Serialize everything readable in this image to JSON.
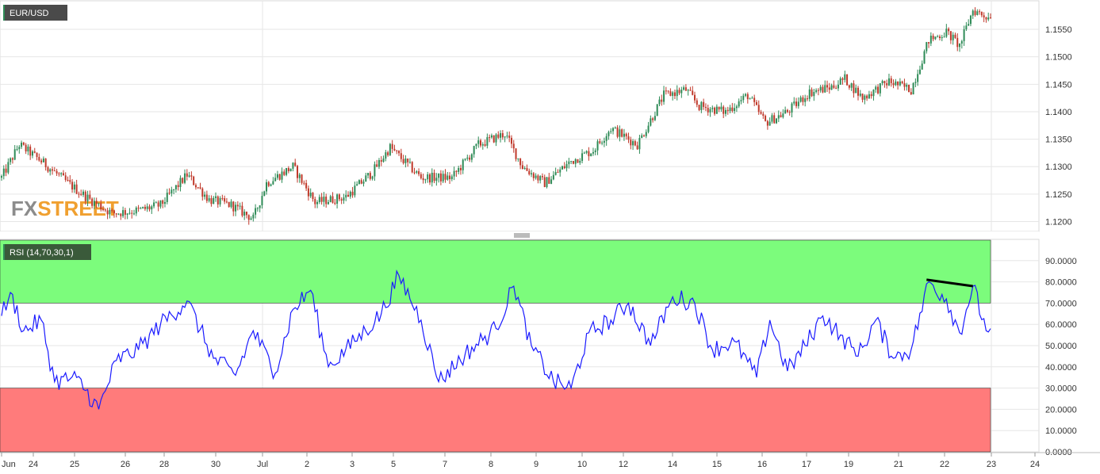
{
  "colors": {
    "up": "#2e8b57",
    "down": "#c0392b",
    "rsi_line": "#1a1aff",
    "overbought_zone": "#7cfc7c",
    "oversold_zone": "#ff7b7b",
    "divergence": "#000000",
    "grid": "#e6e6e6",
    "label_bg": "#4a4a4a",
    "label_bg_rsi": "#3a5a3a"
  },
  "logo": {
    "text": "FXSTREET"
  },
  "chart_data": [
    {
      "type": "candlestick",
      "title": "EUR/USD",
      "yticks": [
        "1.1550",
        "1.1500",
        "1.1450",
        "1.1400",
        "1.1350",
        "1.1300",
        "1.1250",
        "1.1200"
      ],
      "ylim": [
        1.1182,
        1.1602
      ],
      "grid": true,
      "x_labels": [
        "Jun",
        "24",
        "25",
        "26",
        "28",
        "30",
        "Jul",
        "2",
        "3",
        "5",
        "7",
        "8",
        "9",
        "10",
        "12",
        "14",
        "15",
        "16",
        "17",
        "19",
        "21",
        "22",
        "23",
        "24"
      ],
      "close_anchors": [
        {
          "i": 0,
          "c": 1.128
        },
        {
          "i": 8,
          "c": 1.134
        },
        {
          "i": 18,
          "c": 1.131
        },
        {
          "i": 30,
          "c": 1.127
        },
        {
          "i": 40,
          "c": 1.124
        },
        {
          "i": 50,
          "c": 1.1215
        },
        {
          "i": 62,
          "c": 1.122
        },
        {
          "i": 72,
          "c": 1.123
        },
        {
          "i": 84,
          "c": 1.1285
        },
        {
          "i": 94,
          "c": 1.124
        },
        {
          "i": 104,
          "c": 1.123
        },
        {
          "i": 114,
          "c": 1.1205
        },
        {
          "i": 120,
          "c": 1.127
        },
        {
          "i": 132,
          "c": 1.13
        },
        {
          "i": 142,
          "c": 1.1235
        },
        {
          "i": 156,
          "c": 1.1245
        },
        {
          "i": 168,
          "c": 1.129
        },
        {
          "i": 176,
          "c": 1.1335
        },
        {
          "i": 190,
          "c": 1.128
        },
        {
          "i": 204,
          "c": 1.128
        },
        {
          "i": 216,
          "c": 1.134
        },
        {
          "i": 228,
          "c": 1.136
        },
        {
          "i": 236,
          "c": 1.13
        },
        {
          "i": 246,
          "c": 1.127
        },
        {
          "i": 258,
          "c": 1.131
        },
        {
          "i": 268,
          "c": 1.133
        },
        {
          "i": 276,
          "c": 1.137
        },
        {
          "i": 288,
          "c": 1.134
        },
        {
          "i": 300,
          "c": 1.143
        },
        {
          "i": 310,
          "c": 1.144
        },
        {
          "i": 316,
          "c": 1.141
        },
        {
          "i": 328,
          "c": 1.14
        },
        {
          "i": 338,
          "c": 1.143
        },
        {
          "i": 346,
          "c": 1.138
        },
        {
          "i": 356,
          "c": 1.14
        },
        {
          "i": 366,
          "c": 1.1435
        },
        {
          "i": 376,
          "c": 1.1445
        },
        {
          "i": 382,
          "c": 1.146
        },
        {
          "i": 390,
          "c": 1.1425
        },
        {
          "i": 402,
          "c": 1.1455
        },
        {
          "i": 412,
          "c": 1.144
        },
        {
          "i": 420,
          "c": 1.153
        },
        {
          "i": 428,
          "c": 1.1545
        },
        {
          "i": 434,
          "c": 1.152
        },
        {
          "i": 440,
          "c": 1.1585
        },
        {
          "i": 448,
          "c": 1.157
        }
      ],
      "n_candles": 449
    },
    {
      "type": "line",
      "title": "RSI (14,70,30,1)",
      "yticks": [
        "90.0000",
        "80.0000",
        "70.0000",
        "60.0000",
        "50.0000",
        "40.0000",
        "30.0000",
        "20.0000",
        "10.0000",
        "0.0000"
      ],
      "ylim": [
        0,
        100
      ],
      "overbought": 70,
      "oversold": 30,
      "divergence_line": [
        {
          "i": 419,
          "y": 81
        },
        {
          "i": 440,
          "y": 78
        }
      ],
      "rsi_anchors": [
        {
          "i": 0,
          "y": 64
        },
        {
          "i": 4,
          "y": 75
        },
        {
          "i": 10,
          "y": 57
        },
        {
          "i": 18,
          "y": 62
        },
        {
          "i": 24,
          "y": 33
        },
        {
          "i": 34,
          "y": 35
        },
        {
          "i": 44,
          "y": 20
        },
        {
          "i": 52,
          "y": 43
        },
        {
          "i": 62,
          "y": 48
        },
        {
          "i": 72,
          "y": 60
        },
        {
          "i": 84,
          "y": 71
        },
        {
          "i": 96,
          "y": 44
        },
        {
          "i": 106,
          "y": 36
        },
        {
          "i": 114,
          "y": 57
        },
        {
          "i": 124,
          "y": 37
        },
        {
          "i": 132,
          "y": 67
        },
        {
          "i": 140,
          "y": 76
        },
        {
          "i": 148,
          "y": 40
        },
        {
          "i": 160,
          "y": 52
        },
        {
          "i": 172,
          "y": 65
        },
        {
          "i": 180,
          "y": 83
        },
        {
          "i": 190,
          "y": 62
        },
        {
          "i": 198,
          "y": 33
        },
        {
          "i": 210,
          "y": 46
        },
        {
          "i": 224,
          "y": 58
        },
        {
          "i": 232,
          "y": 78
        },
        {
          "i": 240,
          "y": 50
        },
        {
          "i": 250,
          "y": 33
        },
        {
          "i": 258,
          "y": 30
        },
        {
          "i": 266,
          "y": 56
        },
        {
          "i": 276,
          "y": 62
        },
        {
          "i": 284,
          "y": 70
        },
        {
          "i": 294,
          "y": 50
        },
        {
          "i": 304,
          "y": 73
        },
        {
          "i": 314,
          "y": 70
        },
        {
          "i": 322,
          "y": 48
        },
        {
          "i": 332,
          "y": 52
        },
        {
          "i": 342,
          "y": 35
        },
        {
          "i": 348,
          "y": 62
        },
        {
          "i": 356,
          "y": 38
        },
        {
          "i": 364,
          "y": 50
        },
        {
          "i": 372,
          "y": 64
        },
        {
          "i": 380,
          "y": 55
        },
        {
          "i": 388,
          "y": 45
        },
        {
          "i": 396,
          "y": 62
        },
        {
          "i": 404,
          "y": 44
        },
        {
          "i": 412,
          "y": 48
        },
        {
          "i": 420,
          "y": 80
        },
        {
          "i": 428,
          "y": 72
        },
        {
          "i": 434,
          "y": 56
        },
        {
          "i": 440,
          "y": 78
        },
        {
          "i": 446,
          "y": 57
        },
        {
          "i": 448,
          "y": 58
        }
      ]
    }
  ]
}
